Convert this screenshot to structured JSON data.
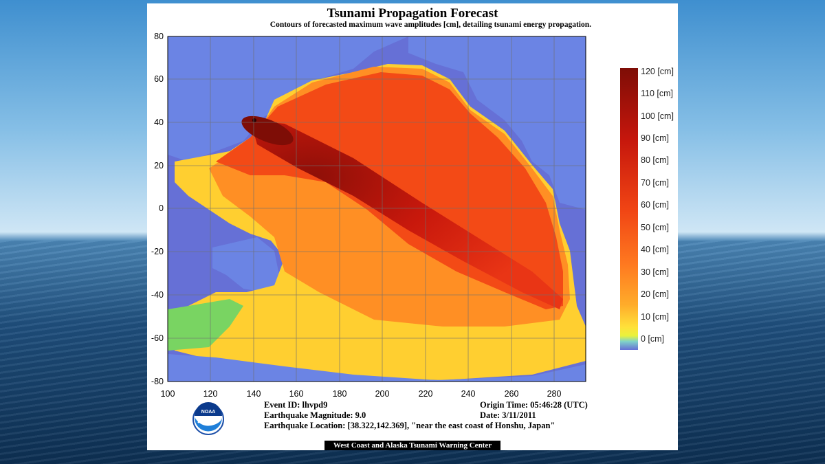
{
  "map": {
    "title": "Tsunami Propagation Forecast",
    "subtitle": "Contours of forecasted maximum wave amplitudes [cm], detailing tsunami energy propagation.",
    "x_axis_ticks": [
      "100",
      "120",
      "140",
      "160",
      "180",
      "200",
      "220",
      "240",
      "260",
      "280"
    ],
    "y_axis_ticks": [
      "80",
      "60",
      "40",
      "20",
      "0",
      "-20",
      "-40",
      "-60",
      "-80"
    ],
    "lon_range": [
      100,
      295
    ],
    "lat_range": [
      -80,
      80
    ],
    "colorbar": {
      "labels": [
        "120 [cm]",
        "110 [cm]",
        "100 [cm]",
        "90 [cm]",
        "80 [cm]",
        "70 [cm]",
        "60 [cm]",
        "50 [cm]",
        "40 [cm]",
        "30 [cm]",
        "20 [cm]",
        "10 [cm]",
        "0 [cm]"
      ],
      "colors": [
        "#7e0d06",
        "#a30f0a",
        "#bd150c",
        "#d21d10",
        "#e02a10",
        "#ea3713",
        "#f14814",
        "#f65c18",
        "#fb6f1e",
        "#ff8a22",
        "#ffa928",
        "#ffd330",
        "#f3f43a",
        "#6f7ce0"
      ]
    },
    "colors": {
      "ocean_zero": "#6670d6",
      "land": "#6b84e4",
      "panel": "#ffffff"
    },
    "agency_logo": "NOAA"
  },
  "event": {
    "event_id": "Event ID: lhvpd9",
    "magnitude": "Earthquake Magnitude: 9.0",
    "location": "Earthquake Location: [38.322,142.369], \"near the east coast of Honshu, Japan\"",
    "origin_time": "Origin Time: 05:46:28 (UTC)",
    "date": "Date: 3/11/2011"
  },
  "footer": "West Coast and Alaska Tsunami Warning Center"
}
